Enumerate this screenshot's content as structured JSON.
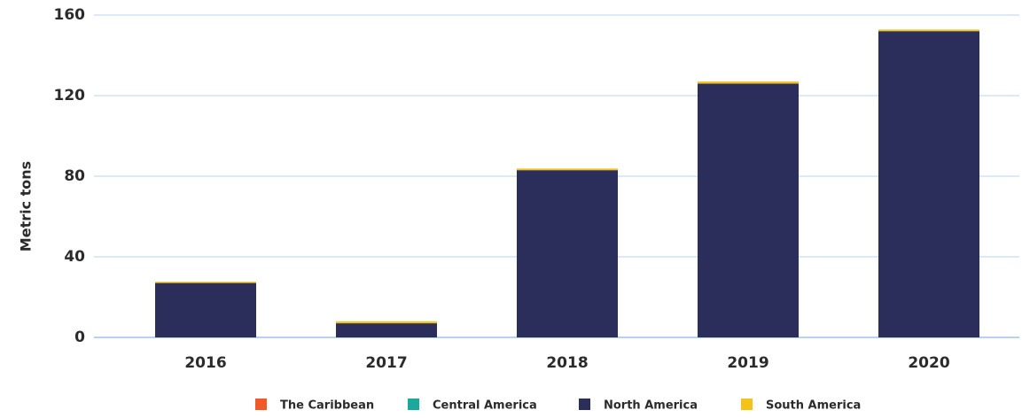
{
  "chart_data": {
    "type": "stacked_bar",
    "y_label": "Metric tons",
    "categories": [
      "2016",
      "2017",
      "2018",
      "2019",
      "2020"
    ],
    "series": [
      {
        "name": "The Caribbean",
        "color": "#f05a28",
        "values": [
          0,
          0,
          0,
          0,
          0
        ]
      },
      {
        "name": "Central America",
        "color": "#1aa99b",
        "values": [
          0,
          0,
          0,
          0,
          0
        ]
      },
      {
        "name": "North America",
        "color": "#2b2d5a",
        "values": [
          27,
          7,
          83,
          126,
          152
        ]
      },
      {
        "name": "South America",
        "color": "#f2c318",
        "values": [
          0.6,
          1,
          0.8,
          1,
          0.8
        ]
      }
    ],
    "ylim": [
      0,
      160
    ],
    "yticks": [
      0,
      40,
      80,
      120,
      160
    ],
    "grid": true,
    "legend": "bottom"
  }
}
